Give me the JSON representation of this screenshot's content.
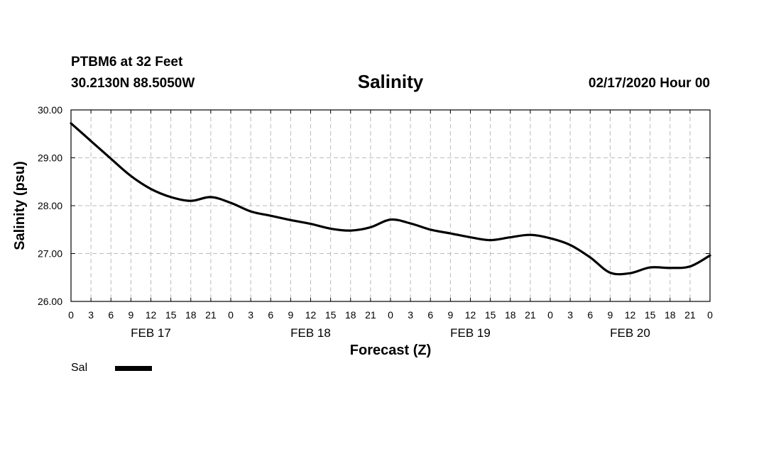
{
  "header": {
    "station": "PTBM6 at 32 Feet",
    "coords": "30.2130N 88.5050W",
    "run": "02/17/2020 Hour 00"
  },
  "chart_data": {
    "type": "line",
    "title": "Salinity",
    "xlabel": "Forecast (Z)",
    "ylabel": "Salinity (psu)",
    "ylim": [
      26,
      30
    ],
    "xlim": [
      0,
      96
    ],
    "grid": true,
    "y_ticks": [
      "26.00",
      "27.00",
      "28.00",
      "29.00",
      "30.00"
    ],
    "x_tick_labels": [
      "0",
      "3",
      "6",
      "9",
      "12",
      "15",
      "18",
      "21",
      "0",
      "3",
      "6",
      "9",
      "12",
      "15",
      "18",
      "21",
      "0",
      "3",
      "6",
      "9",
      "12",
      "15",
      "18",
      "21",
      "0",
      "3",
      "6",
      "9",
      "12",
      "15",
      "18",
      "21",
      "0"
    ],
    "date_labels": [
      "FEB 17",
      "FEB 18",
      "FEB 19",
      "FEB 20"
    ],
    "legend": [
      {
        "name": "Sal",
        "color": "#000000"
      }
    ],
    "series": [
      {
        "name": "Sal",
        "x": [
          0,
          3,
          6,
          9,
          12,
          15,
          18,
          21,
          24,
          27,
          30,
          33,
          36,
          39,
          42,
          45,
          48,
          51,
          54,
          57,
          60,
          63,
          66,
          69,
          72,
          75,
          78,
          81,
          84,
          87,
          90,
          93,
          96
        ],
        "values": [
          29.72,
          29.35,
          28.98,
          28.62,
          28.35,
          28.18,
          28.1,
          28.18,
          28.06,
          27.88,
          27.79,
          27.7,
          27.62,
          27.52,
          27.48,
          27.55,
          27.71,
          27.63,
          27.5,
          27.42,
          27.34,
          27.28,
          27.34,
          27.39,
          27.32,
          27.18,
          26.92,
          26.6,
          26.59,
          26.71,
          26.7,
          26.73,
          26.96
        ]
      }
    ]
  }
}
